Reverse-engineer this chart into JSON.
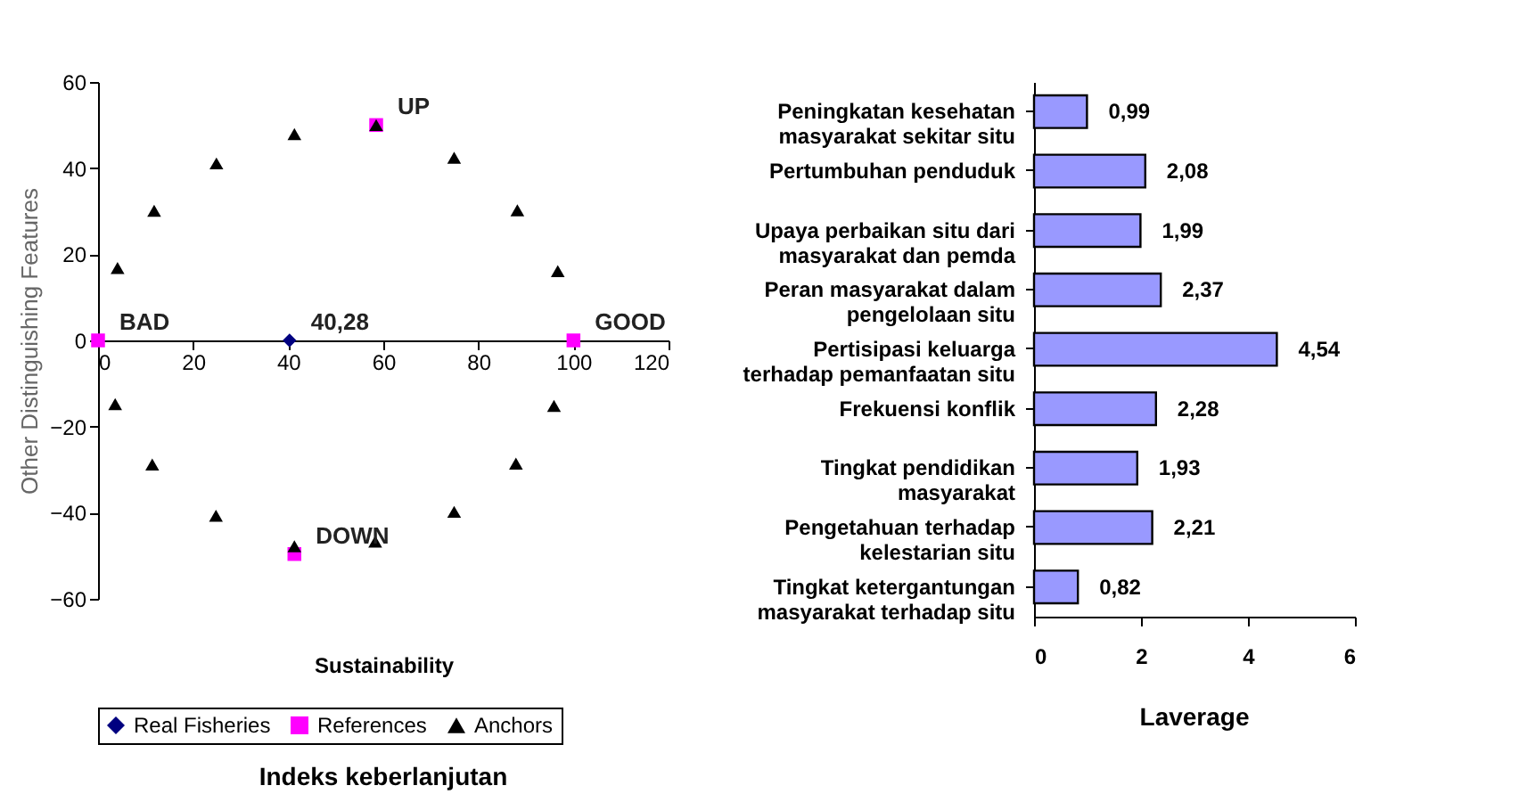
{
  "chart_data": [
    {
      "type": "scatter",
      "title": "Indeks keberlanjutan",
      "xlabel": "Sustainability",
      "ylabel": "Other Distinguishing Features",
      "xlim": [
        0,
        120
      ],
      "xticks": [
        0,
        20,
        40,
        60,
        80,
        100,
        120
      ],
      "ylim": [
        -60,
        60
      ],
      "yticks": [
        -60,
        -40,
        -20,
        0,
        20,
        40,
        60
      ],
      "grid": false,
      "legend": "bottom",
      "series": [
        {
          "name": "Real Fisheries",
          "color": "#000080",
          "marker": "diamond",
          "x": [
            40.28
          ],
          "values": [
            0
          ]
        },
        {
          "name": "References",
          "color": "#ff00ff",
          "marker": "square",
          "x": [
            0,
            100,
            58.5,
            41.3
          ],
          "values": [
            0,
            0,
            50,
            -49.6
          ]
        },
        {
          "name": "Anchors",
          "color": "#000000",
          "marker": "triangle",
          "x": [
            41.3,
            58.5,
            24.9,
            74.9,
            11.8,
            88.2,
            4.1,
            96.7,
            3.6,
            95.9,
            11.4,
            87.9,
            24.8,
            74.9,
            41.3,
            58.3
          ],
          "values": [
            47.9,
            50,
            41.1,
            42.4,
            30.1,
            30.2,
            16.8,
            16.1,
            -14.8,
            -15.2,
            -28.8,
            -28.6,
            -40.7,
            -39.8,
            -47.8,
            -46.7
          ]
        }
      ],
      "annotations": [
        {
          "text": "40,28",
          "x": 40.28,
          "y": 0
        },
        {
          "text": "BAD",
          "x": 0,
          "y": 0
        },
        {
          "text": "GOOD",
          "x": 100,
          "y": 0
        },
        {
          "text": "UP",
          "x": 58.5,
          "y": 50
        },
        {
          "text": "DOWN",
          "x": 41.3,
          "y": -49.6
        }
      ]
    },
    {
      "type": "bar",
      "orientation": "horizontal",
      "title": "Laverage",
      "categories": [
        "Peningkatan kesehatan masyarakat sekitar situ",
        "Pertumbuhan penduduk",
        "Upaya perbaikan situ dari masyarakat dan pemda",
        "Peran masyarakat dalam pengelolaan situ",
        "Pertisipasi keluarga terhadap pemanfaatan situ",
        "Frekuensi konflik",
        "Tingkat pendidikan masyarakat",
        "Pengetahuan terhadap kelestarian situ",
        "Tingkat ketergantungan masyarakat terhadap situ"
      ],
      "values": [
        0.99,
        2.08,
        1.99,
        2.37,
        4.54,
        2.28,
        1.93,
        2.21,
        0.82
      ],
      "value_labels": [
        "0,99",
        "2,08",
        "1,99",
        "2,37",
        "4,54",
        "2,28",
        "1,93",
        "2,21",
        "0,82"
      ],
      "color": "#9999ff",
      "xlim": [
        0,
        6
      ],
      "xticks": [
        0,
        2,
        4,
        6
      ],
      "grid": false
    }
  ]
}
